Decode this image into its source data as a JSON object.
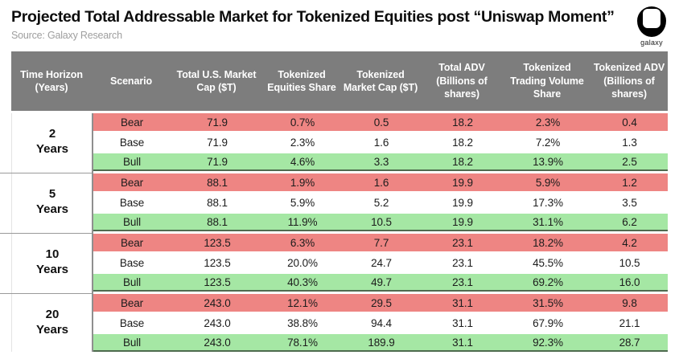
{
  "page": {
    "title": "Projected Total Addressable Market for Tokenized Equities post “Uniswap Moment”",
    "source": "Source: Galaxy Research",
    "logo_label": "galaxy"
  },
  "colors": {
    "header_bg": "#7d7d7d",
    "bear_bg": "#ee8583",
    "base_bg": "#ffffff",
    "bull_bg": "#a5e7a4",
    "bull_border": "#4f6b4f"
  },
  "table": {
    "columns": [
      "Time Horizon (Years)",
      "Scenario",
      "Total U.S. Market Cap ($T)",
      "Tokenized Equities Share",
      "Tokenized Market Cap ($T)",
      "Total ADV (Billions of shares)",
      "Tokenized Trading Volume Share",
      "Tokenized ADV (Billions of shares)"
    ],
    "groups": [
      {
        "time_horizon": [
          "2",
          "Years"
        ],
        "rows": [
          {
            "scenario": "Bear",
            "tone": "bear",
            "values": [
              "71.9",
              "0.7%",
              "0.5",
              "18.2",
              "2.3%",
              "0.4"
            ]
          },
          {
            "scenario": "Base",
            "tone": "base",
            "values": [
              "71.9",
              "2.3%",
              "1.6",
              "18.2",
              "7.2%",
              "1.3"
            ]
          },
          {
            "scenario": "Bull",
            "tone": "bull",
            "values": [
              "71.9",
              "4.6%",
              "3.3",
              "18.2",
              "13.9%",
              "2.5"
            ]
          }
        ]
      },
      {
        "time_horizon": [
          "5",
          "Years"
        ],
        "rows": [
          {
            "scenario": "Bear",
            "tone": "bear",
            "values": [
              "88.1",
              "1.9%",
              "1.6",
              "19.9",
              "5.9%",
              "1.2"
            ]
          },
          {
            "scenario": "Base",
            "tone": "base",
            "values": [
              "88.1",
              "5.9%",
              "5.2",
              "19.9",
              "17.3%",
              "3.5"
            ]
          },
          {
            "scenario": "Bull",
            "tone": "bull",
            "values": [
              "88.1",
              "11.9%",
              "10.5",
              "19.9",
              "31.1%",
              "6.2"
            ]
          }
        ]
      },
      {
        "time_horizon": [
          "10",
          "Years"
        ],
        "rows": [
          {
            "scenario": "Bear",
            "tone": "bear",
            "values": [
              "123.5",
              "6.3%",
              "7.7",
              "23.1",
              "18.2%",
              "4.2"
            ]
          },
          {
            "scenario": "Base",
            "tone": "base",
            "values": [
              "123.5",
              "20.0%",
              "24.7",
              "23.1",
              "45.5%",
              "10.5"
            ]
          },
          {
            "scenario": "Bull",
            "tone": "bull",
            "values": [
              "123.5",
              "40.3%",
              "49.7",
              "23.1",
              "69.2%",
              "16.0"
            ]
          }
        ]
      },
      {
        "time_horizon": [
          "20",
          "Years"
        ],
        "rows": [
          {
            "scenario": "Bear",
            "tone": "bear",
            "values": [
              "243.0",
              "12.1%",
              "29.5",
              "31.1",
              "31.5%",
              "9.8"
            ]
          },
          {
            "scenario": "Base",
            "tone": "base",
            "values": [
              "243.0",
              "38.8%",
              "94.4",
              "31.1",
              "67.9%",
              "21.1"
            ]
          },
          {
            "scenario": "Bull",
            "tone": "bull",
            "values": [
              "243.0",
              "78.1%",
              "189.9",
              "31.1",
              "92.3%",
              "28.7"
            ]
          }
        ]
      }
    ]
  },
  "chart_data": {
    "type": "table",
    "title": "Projected Total Addressable Market for Tokenized Equities post “Uniswap Moment”",
    "source": "Source: Galaxy Research",
    "columns": [
      "Time Horizon (Years)",
      "Scenario",
      "Total U.S. Market Cap ($T)",
      "Tokenized Equities Share",
      "Tokenized Market Cap ($T)",
      "Total ADV (Billions of shares)",
      "Tokenized Trading Volume Share",
      "Tokenized ADV (Billions of shares)"
    ],
    "rows": [
      [
        "2 Years",
        "Bear",
        "71.9",
        "0.7%",
        "0.5",
        "18.2",
        "2.3%",
        "0.4"
      ],
      [
        "2 Years",
        "Base",
        "71.9",
        "2.3%",
        "1.6",
        "18.2",
        "7.2%",
        "1.3"
      ],
      [
        "2 Years",
        "Bull",
        "71.9",
        "4.6%",
        "3.3",
        "18.2",
        "13.9%",
        "2.5"
      ],
      [
        "5 Years",
        "Bear",
        "88.1",
        "1.9%",
        "1.6",
        "19.9",
        "5.9%",
        "1.2"
      ],
      [
        "5 Years",
        "Base",
        "88.1",
        "5.9%",
        "5.2",
        "19.9",
        "17.3%",
        "3.5"
      ],
      [
        "5 Years",
        "Bull",
        "88.1",
        "11.9%",
        "10.5",
        "19.9",
        "31.1%",
        "6.2"
      ],
      [
        "10 Years",
        "Bear",
        "123.5",
        "6.3%",
        "7.7",
        "23.1",
        "18.2%",
        "4.2"
      ],
      [
        "10 Years",
        "Base",
        "123.5",
        "20.0%",
        "24.7",
        "23.1",
        "45.5%",
        "10.5"
      ],
      [
        "10 Years",
        "Bull",
        "123.5",
        "40.3%",
        "49.7",
        "23.1",
        "69.2%",
        "16.0"
      ],
      [
        "20 Years",
        "Bear",
        "243.0",
        "12.1%",
        "29.5",
        "31.1",
        "31.5%",
        "9.8"
      ],
      [
        "20 Years",
        "Base",
        "243.0",
        "38.8%",
        "94.4",
        "31.1",
        "67.9%",
        "21.1"
      ],
      [
        "20 Years",
        "Bull",
        "243.0",
        "78.1%",
        "189.9",
        "31.1",
        "92.3%",
        "28.7"
      ]
    ]
  }
}
